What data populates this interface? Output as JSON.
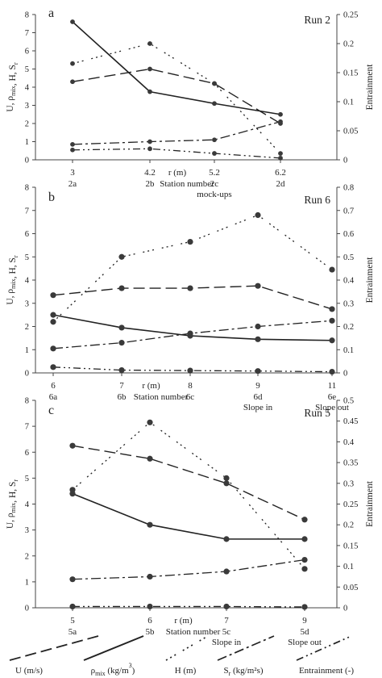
{
  "chart_data": [
    {
      "type": "line",
      "panel_letter": "a",
      "run_label": "Run 2",
      "ylabel_left": "U, ρmix, H, Sr",
      "ylabel_right": "Entrainment",
      "xlabel": "r (m)",
      "station_label": "Station number",
      "x_ticks": [
        "3",
        "4.2",
        "5.2",
        "6.2"
      ],
      "station_ticks": [
        "2a",
        "2b",
        "2c",
        "2d"
      ],
      "x_notes": [
        {
          "x": 5.2,
          "text": "mock-ups"
        }
      ],
      "ylim": [
        0,
        8
      ],
      "y_ticks": [
        "0",
        "1",
        "2",
        "3",
        "4",
        "5",
        "6",
        "7",
        "8"
      ],
      "ylim_right": [
        0,
        0.25
      ],
      "y_ticks_right": [
        "0",
        "0.05",
        "0.1",
        "0.15",
        "0.2",
        "0.25"
      ],
      "x": [
        3,
        4.2,
        5.2,
        6.2
      ],
      "series": [
        {
          "key": "U",
          "axis": "left",
          "values": [
            4.3,
            5.0,
            4.2,
            2.0
          ]
        },
        {
          "key": "rho",
          "axis": "left",
          "values": [
            7.6,
            3.75,
            3.1,
            2.5
          ]
        },
        {
          "key": "H",
          "axis": "left",
          "values": [
            5.3,
            6.4,
            4.2,
            0.35
          ]
        },
        {
          "key": "Sr",
          "axis": "left",
          "values": [
            0.85,
            1.0,
            1.1,
            2.1
          ]
        },
        {
          "key": "E",
          "axis": "right",
          "values": [
            0.017,
            0.019,
            0.011,
            0.003
          ]
        }
      ],
      "markers": false
    },
    {
      "type": "line",
      "panel_letter": "b",
      "run_label": "Run 6",
      "ylabel_left": "U, ρmix, H, Sr",
      "ylabel_right": "Entrainment",
      "xlabel": "r (m)",
      "station_label": "Station number",
      "x_ticks": [
        "6",
        "7",
        "8",
        "9",
        "11"
      ],
      "station_ticks": [
        "6a",
        "6b",
        "6c",
        "6d",
        "6e"
      ],
      "x_notes": [
        {
          "x": 9,
          "text": "Slope in"
        },
        {
          "x": 11,
          "text": "Slope out"
        }
      ],
      "ylim": [
        0,
        8
      ],
      "y_ticks": [
        "0",
        "1",
        "2",
        "3",
        "4",
        "5",
        "6",
        "7",
        "8"
      ],
      "ylim_right": [
        0,
        0.8
      ],
      "y_ticks_right": [
        "0",
        "0.1",
        "0.2",
        "0.3",
        "0.4",
        "0.5",
        "0.6",
        "0.7",
        "0.8"
      ],
      "x": [
        6,
        7,
        8,
        9,
        11
      ],
      "series": [
        {
          "key": "U",
          "axis": "left",
          "values": [
            3.35,
            3.65,
            3.65,
            3.75,
            2.75
          ]
        },
        {
          "key": "rho",
          "axis": "left",
          "values": [
            2.5,
            1.95,
            1.6,
            1.45,
            1.4
          ]
        },
        {
          "key": "H",
          "axis": "left",
          "values": [
            2.2,
            5.0,
            5.65,
            6.8,
            4.45
          ]
        },
        {
          "key": "Sr",
          "axis": "left",
          "values": [
            1.05,
            1.3,
            1.7,
            2.0,
            2.25
          ]
        },
        {
          "key": "E",
          "axis": "right",
          "values": [
            0.025,
            0.012,
            0.01,
            0.008,
            0.005
          ]
        }
      ],
      "markers": true
    },
    {
      "type": "line",
      "panel_letter": "c",
      "run_label": "Run 5",
      "ylabel_left": "U, ρmix, H, Sr",
      "ylabel_right": "Entrainment",
      "xlabel": "r (m)",
      "station_label": "Station number",
      "x_ticks": [
        "5",
        "6",
        "7",
        "9"
      ],
      "station_ticks": [
        "5a",
        "5b",
        "5c",
        "5d"
      ],
      "x_notes": [
        {
          "x": 7,
          "text": "Slope in"
        },
        {
          "x": 9,
          "text": "Slope out"
        }
      ],
      "ylim": [
        0,
        8
      ],
      "y_ticks": [
        "0",
        "1",
        "2",
        "3",
        "4",
        "5",
        "6",
        "7",
        "8"
      ],
      "ylim_right": [
        0,
        0.5
      ],
      "y_ticks_right": [
        "0",
        "0.05",
        "0.1",
        "0.15",
        "0.2",
        "0.25",
        "0.3",
        "0.35",
        "0.4",
        "0.45",
        "0.5"
      ],
      "x": [
        5,
        6,
        7,
        9
      ],
      "series": [
        {
          "key": "U",
          "axis": "left",
          "values": [
            6.25,
            5.75,
            4.8,
            3.4
          ]
        },
        {
          "key": "rho",
          "axis": "left",
          "values": [
            4.4,
            3.2,
            2.65,
            2.65
          ]
        },
        {
          "key": "H",
          "axis": "left",
          "values": [
            4.55,
            7.15,
            5.0,
            1.5
          ]
        },
        {
          "key": "Sr",
          "axis": "left",
          "values": [
            1.1,
            1.2,
            1.4,
            1.85
          ]
        },
        {
          "key": "E",
          "axis": "right",
          "values": [
            0.003,
            0.003,
            0.003,
            0.002
          ]
        }
      ],
      "markers": true
    }
  ],
  "legend": [
    {
      "key": "U",
      "label": "U (m/s)"
    },
    {
      "key": "rho",
      "label": "ρmix (kg/m³)"
    },
    {
      "key": "H",
      "label": "H (m)"
    },
    {
      "key": "Sr",
      "label": "Sr (kg/m²s)"
    },
    {
      "key": "E",
      "label": "Entrainment (-)"
    }
  ],
  "styles": {
    "U": {
      "dash": "14 6",
      "width": 1.4
    },
    "rho": {
      "dash": "",
      "width": 1.6
    },
    "H": {
      "dash": "2 4 2 4 2 10",
      "width": 1.3
    },
    "Sr": {
      "dash": "12 4 3 4",
      "width": 1.3
    },
    "E": {
      "dash": "9 4 2 4 2 4",
      "width": 1.3
    }
  },
  "colors": {
    "line": "#222222",
    "marker": "#3a3a3a",
    "text": "#222222"
  }
}
